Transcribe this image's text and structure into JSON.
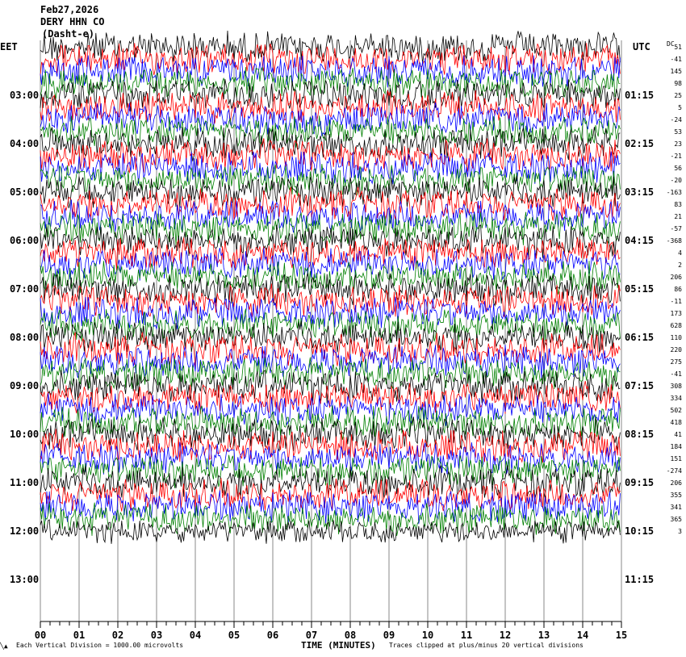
{
  "header": {
    "date": "Feb27,2026",
    "station": "DERY HHN CO",
    "channel": "(Dasht-e)"
  },
  "left_timezone": "EET",
  "right_timezone": "UTC",
  "dc_label": "DC",
  "footer": {
    "corner_glyph": "╲▲",
    "scale_note": "Each Vertical Division = 1000.00 microvolts",
    "xlabel": "TIME (MINUTES)",
    "clip_note": "Traces clipped at plus/minus 20 vertical divisions"
  },
  "chart_data": {
    "type": "line",
    "title": "",
    "xlabel": "TIME (MINUTES)",
    "ylabel": "",
    "xlim": [
      0,
      15
    ],
    "x_ticks": [
      "00",
      "01",
      "02",
      "03",
      "04",
      "05",
      "06",
      "07",
      "08",
      "09",
      "10",
      "11",
      "12",
      "13",
      "14",
      "15"
    ],
    "left_hour_labels": [
      "03:00",
      "04:00",
      "05:00",
      "06:00",
      "07:00",
      "08:00",
      "09:00",
      "10:00",
      "11:00",
      "12:00",
      "13:00"
    ],
    "right_hour_labels": [
      "01:15",
      "02:15",
      "03:15",
      "04:15",
      "05:15",
      "06:15",
      "07:15",
      "08:15",
      "09:15",
      "10:15",
      "11:15"
    ],
    "trace_color_cycle": [
      "#000000",
      "#ff0000",
      "#0000ff",
      "#008000"
    ],
    "dc_offsets": [
      "51",
      "-41",
      "145",
      "98",
      "25",
      "5",
      "-24",
      "53",
      "23",
      "-21",
      "56",
      "-20",
      "-163",
      "83",
      "21",
      "-57",
      "-368",
      "4",
      "2",
      "206",
      "86",
      "-11",
      "173",
      "628",
      "110",
      "220",
      "275",
      "-41",
      "308",
      "334",
      "502",
      "418",
      "41",
      "184",
      "151",
      "-274",
      "206",
      "355",
      "341",
      "365",
      "3"
    ],
    "grid": "vertical-minute-lines",
    "legend": "none"
  }
}
